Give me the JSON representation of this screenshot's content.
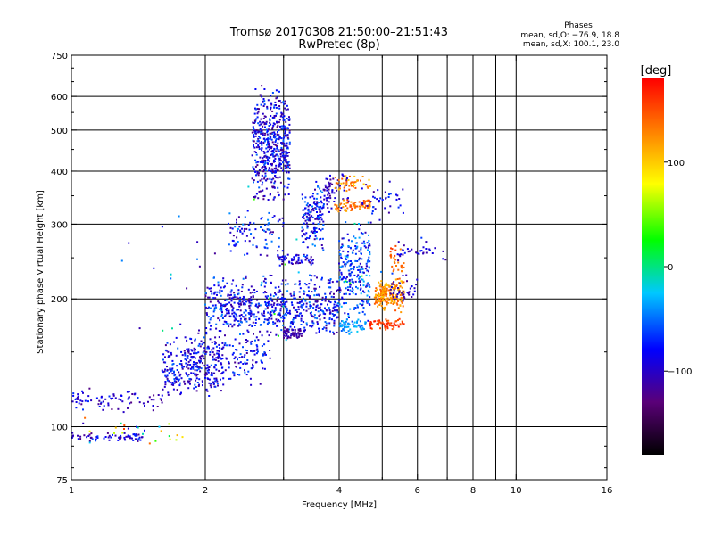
{
  "header": {
    "title_line1": "Tromsø 20170308 21:50:00–21:51:43",
    "title_line2": "RwPretec (8p)"
  },
  "stats": {
    "heading": "Phases",
    "line_o": "mean, sd,O: −76.9, 18.8",
    "line_x": "mean, sd,X: 100.1, 23.0"
  },
  "colorbar": {
    "unit": "[deg]",
    "range": [
      -180,
      180
    ],
    "ticks": [
      100,
      0,
      -100
    ],
    "tick_labels": [
      "100",
      "0",
      "−100"
    ],
    "colors": [
      "#000000",
      "#5a0078",
      "#0000ff",
      "#00c8ff",
      "#00ff00",
      "#ffff00",
      "#ff8000",
      "#ff0000"
    ]
  },
  "chart_data": {
    "type": "scatter",
    "xlabel": "Frequency [MHz]",
    "ylabel": "Stationary phase Virtual Height [km]",
    "x_scale": "log",
    "y_scale": "log",
    "xlim": [
      1,
      16
    ],
    "ylim": [
      75,
      750
    ],
    "x_ticks": [
      1,
      2,
      4,
      6,
      8,
      10,
      16
    ],
    "x_tick_labels": [
      "1",
      "2",
      "4",
      "6",
      "8",
      "10",
      "16"
    ],
    "x_grid": [
      2,
      3,
      4,
      5,
      6,
      7,
      8,
      9,
      10
    ],
    "y_ticks": [
      75,
      100,
      200,
      300,
      400,
      500,
      600,
      750
    ],
    "y_tick_labels": [
      "75",
      "100",
      "200",
      "300",
      "400",
      "500",
      "600",
      "750"
    ],
    "y_grid": [
      100,
      200,
      300,
      400,
      500,
      600
    ],
    "grid": true,
    "clusters": [
      {
        "f": [
          2.55,
          3.1
        ],
        "h": [
          330,
          640
        ],
        "n": 520,
        "phase": [
          -125,
          -50
        ]
      },
      {
        "f": [
          2.25,
          3.0
        ],
        "h": [
          250,
          330
        ],
        "n": 90,
        "phase": [
          -120,
          -40
        ]
      },
      {
        "f": [
          3.3,
          3.7
        ],
        "h": [
          260,
          380
        ],
        "n": 160,
        "phase": [
          -115,
          -40
        ]
      },
      {
        "f": [
          3.7,
          4.2
        ],
        "h": [
          315,
          400
        ],
        "n": 60,
        "phase": [
          -120,
          -80
        ]
      },
      {
        "f": [
          3.9,
          4.7
        ],
        "h": [
          320,
          345
        ],
        "n": 70,
        "phase": [
          110,
          160
        ]
      },
      {
        "f": [
          3.9,
          4.7
        ],
        "h": [
          355,
          395
        ],
        "n": 45,
        "phase": [
          90,
          150
        ]
      },
      {
        "f": [
          4.5,
          5.6
        ],
        "h": [
          300,
          380
        ],
        "n": 40,
        "phase": [
          -120,
          -60
        ]
      },
      {
        "f": [
          2.0,
          4.0
        ],
        "h": [
          160,
          230
        ],
        "n": 650,
        "phase": [
          -120,
          -40
        ]
      },
      {
        "f": [
          3.0,
          3.3
        ],
        "h": [
          160,
          172
        ],
        "n": 60,
        "phase": [
          -125,
          -95
        ]
      },
      {
        "f": [
          2.9,
          3.5
        ],
        "h": [
          238,
          258
        ],
        "n": 60,
        "phase": [
          -125,
          -60
        ]
      },
      {
        "f": [
          4.0,
          4.7
        ],
        "h": [
          170,
          310
        ],
        "n": 240,
        "phase": [
          -110,
          -30
        ]
      },
      {
        "f": [
          4.0,
          4.6
        ],
        "h": [
          165,
          180
        ],
        "n": 60,
        "phase": [
          -60,
          -20
        ]
      },
      {
        "f": [
          4.8,
          5.6
        ],
        "h": [
          185,
          225
        ],
        "n": 200,
        "phase": [
          95,
          150
        ]
      },
      {
        "f": [
          4.7,
          5.6
        ],
        "h": [
          168,
          182
        ],
        "n": 60,
        "phase": [
          140,
          175
        ]
      },
      {
        "f": [
          5.2,
          5.6
        ],
        "h": [
          225,
          275
        ],
        "n": 30,
        "phase": [
          120,
          160
        ]
      },
      {
        "f": [
          5.2,
          6.0
        ],
        "h": [
          190,
          230
        ],
        "n": 40,
        "phase": [
          -125,
          -80
        ]
      },
      {
        "f": [
          5.4,
          7.0
        ],
        "h": [
          240,
          280
        ],
        "n": 35,
        "phase": [
          -120,
          -60
        ]
      },
      {
        "f": [
          1.6,
          2.2
        ],
        "h": [
          115,
          165
        ],
        "n": 240,
        "phase": [
          -120,
          -50
        ]
      },
      {
        "f": [
          1.8,
          2.8
        ],
        "h": [
          125,
          170
        ],
        "n": 200,
        "phase": [
          -120,
          -50
        ]
      },
      {
        "f": [
          1.0,
          1.6
        ],
        "h": [
          108,
          125
        ],
        "n": 80,
        "phase": [
          -125,
          -60
        ]
      },
      {
        "f": [
          1.0,
          1.45
        ],
        "h": [
          92,
          97
        ],
        "n": 70,
        "phase": [
          -125,
          -50
        ]
      },
      {
        "f": [
          1.05,
          1.8
        ],
        "h": [
          88,
          110
        ],
        "n": 25,
        "phase": [
          -110,
          160
        ]
      },
      {
        "f": [
          1.3,
          5.6
        ],
        "h": [
          130,
          400
        ],
        "n": 40,
        "phase": [
          -120,
          40
        ]
      }
    ]
  }
}
